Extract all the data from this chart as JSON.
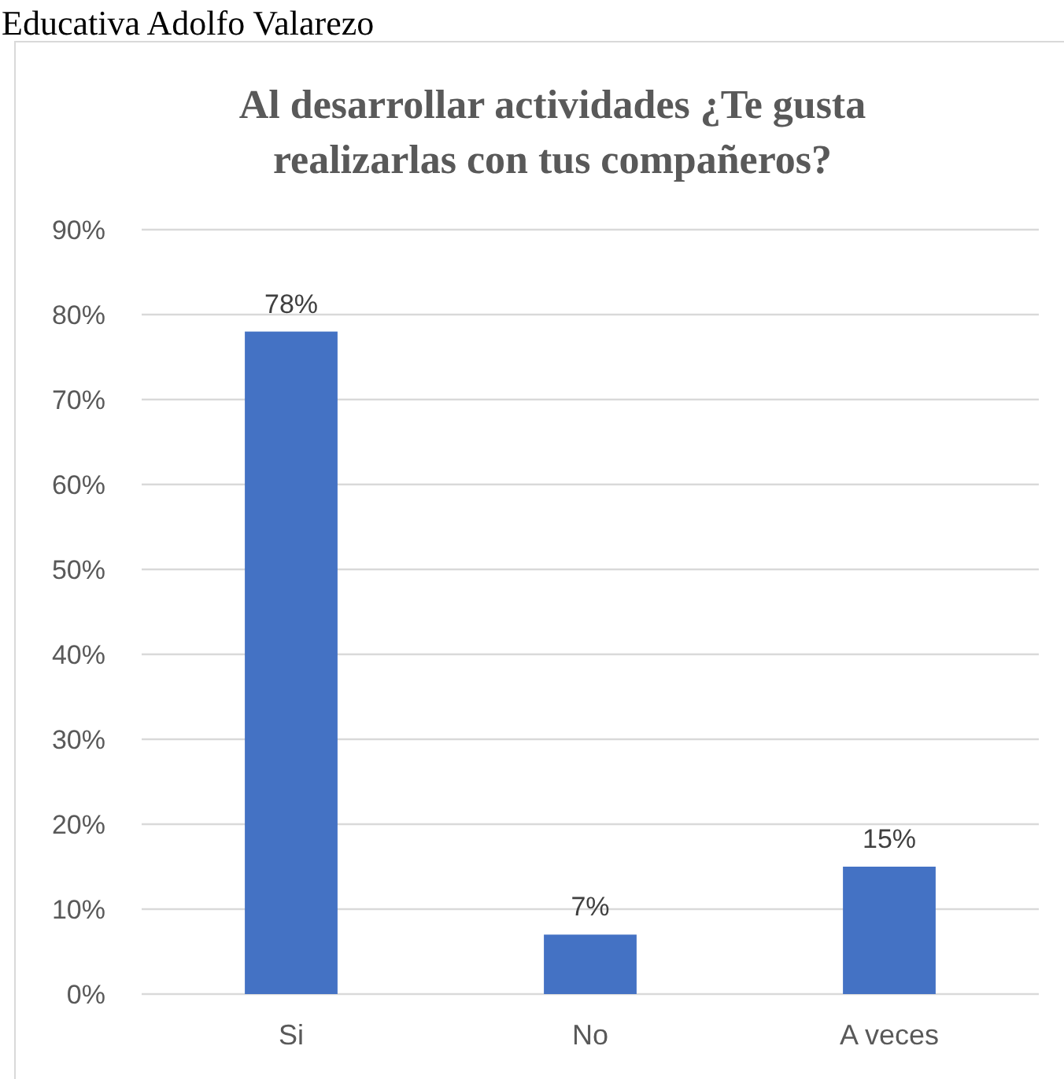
{
  "chart_data": {
    "type": "bar",
    "title": "Al desarrollar actividades ¿Te gusta realizarlas con tus compañeros?",
    "annotations": [
      "Educativa Adolfo Valarezo"
    ],
    "categories": [
      "Si",
      "No",
      "A veces"
    ],
    "values": [
      78,
      7,
      15
    ],
    "color": "#4472c4",
    "value_labels": [
      "78%",
      "7%",
      "15%"
    ],
    "ylim": [
      0,
      90
    ],
    "yticks": [
      {
        "value": 0,
        "label": "0%"
      },
      {
        "value": 10,
        "label": "10%"
      },
      {
        "value": 20,
        "label": "20%"
      },
      {
        "value": 30,
        "label": "30%"
      },
      {
        "value": 40,
        "label": "40%"
      },
      {
        "value": 50,
        "label": "50%"
      },
      {
        "value": 60,
        "label": "60%"
      },
      {
        "value": 70,
        "label": "70%"
      },
      {
        "value": 80,
        "label": "80%"
      },
      {
        "value": 90,
        "label": "90%"
      }
    ],
    "grid": "y"
  }
}
